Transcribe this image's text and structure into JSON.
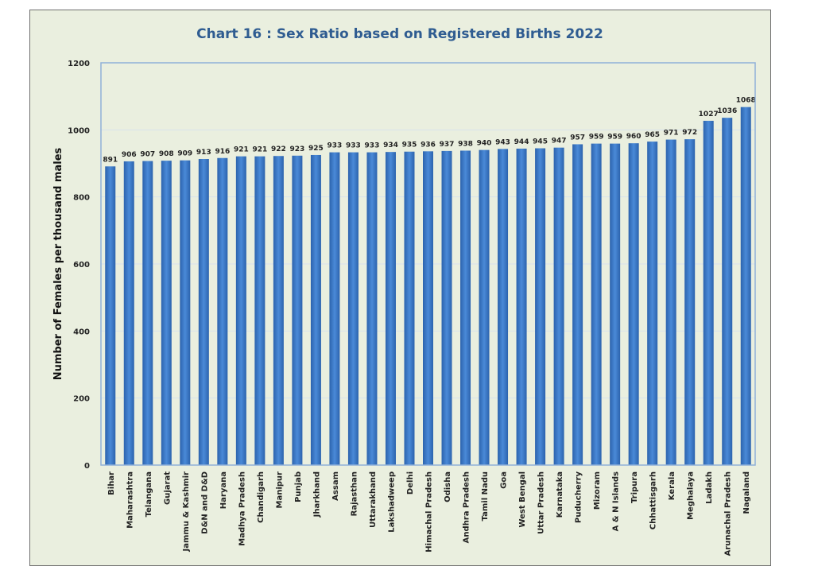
{
  "chart_data": {
    "type": "bar",
    "title": "Chart 16 : Sex Ratio based on Registered  Births  2022",
    "xlabel": "",
    "ylabel": "Number of Females per thousand males",
    "ylim": [
      0,
      1200
    ],
    "yticks": [
      0,
      200,
      400,
      600,
      800,
      1000,
      1200
    ],
    "grid": true,
    "bar_color": "#3a78c8",
    "title_color": "#2f5c91",
    "categories": [
      "Bihar",
      "Maharashtra",
      "Telangana",
      "Gujarat",
      "Jammu & Kashmir",
      "D&N and D&D",
      "Haryana",
      "Madhya Pradesh",
      "Chandigarh",
      "Manipur",
      "Punjab",
      "Jharkhand",
      "Assam",
      "Rajasthan",
      "Uttarakhand",
      "Lakshadweep",
      "Delhi",
      "Himachal Pradesh",
      "Odisha",
      "Andhra Pradesh",
      "Tamil Nadu",
      "Goa",
      "West Bengal",
      "Uttar Pradesh",
      "Karnataka",
      "Puducherry",
      "Mizoram",
      "A & N Islands",
      "Tripura",
      "Chhattisgarh",
      "Kerala",
      "Meghalaya",
      "Ladakh",
      "Arunachal Pradesh",
      "Nagaland"
    ],
    "values": [
      891,
      906,
      907,
      908,
      909,
      913,
      916,
      921,
      921,
      922,
      923,
      925,
      933,
      933,
      933,
      934,
      935,
      936,
      937,
      938,
      940,
      943,
      944,
      945,
      947,
      957,
      959,
      959,
      960,
      965,
      971,
      972,
      1027,
      1036,
      1068
    ]
  }
}
